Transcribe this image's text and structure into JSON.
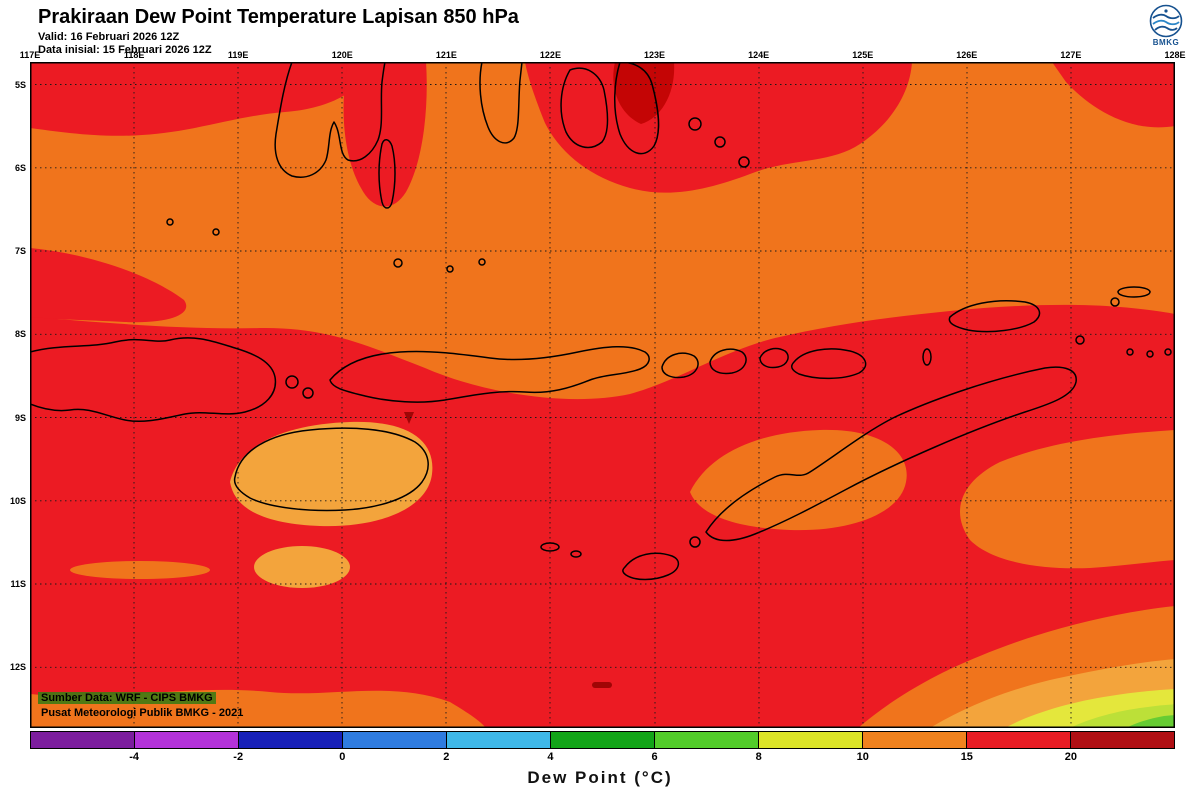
{
  "header": {
    "title": "Prakiraan Dew Point Temperature Lapisan 850 hPa",
    "valid": "Valid: 16 Februari 2026 12Z",
    "init": "Data inisial: 15 Februari 2026 12Z",
    "logo_text": "BMKG"
  },
  "map": {
    "lon_labels": [
      "117E",
      "118E",
      "119E",
      "120E",
      "121E",
      "122E",
      "123E",
      "124E",
      "125E",
      "126E",
      "127E",
      "128E"
    ],
    "lat_labels": [
      "5S",
      "6S",
      "7S",
      "8S",
      "9S",
      "10S",
      "11S",
      "12S"
    ],
    "credit_line1": "Sumber Data: WRF - CIPS BMKG",
    "credit_line2": "Pusat Meteorologi Publik BMKG - 2021"
  },
  "colorbar": {
    "caption": "Dew Point (°C)",
    "tick_labels": [
      "-4",
      "-2",
      "0",
      "2",
      "4",
      "6",
      "8",
      "10",
      "15",
      "20"
    ],
    "segment_colors": [
      "#7C1D9E",
      "#B332D9",
      "#1820B8",
      "#2F7CE0",
      "#3FB8E8",
      "#12A418",
      "#52CC2A",
      "#DCE428",
      "#F0821E",
      "#E81C24",
      "#B00F14"
    ]
  },
  "palette": {
    "base_orange": "#F0741C",
    "red": "#EC1B23",
    "amber": "#F3A43C",
    "dark_red": "#B00F14",
    "yellow": "#E4E73C",
    "yellow_green": "#BCE038",
    "green": "#66CC33",
    "coastline": "#000000"
  }
}
